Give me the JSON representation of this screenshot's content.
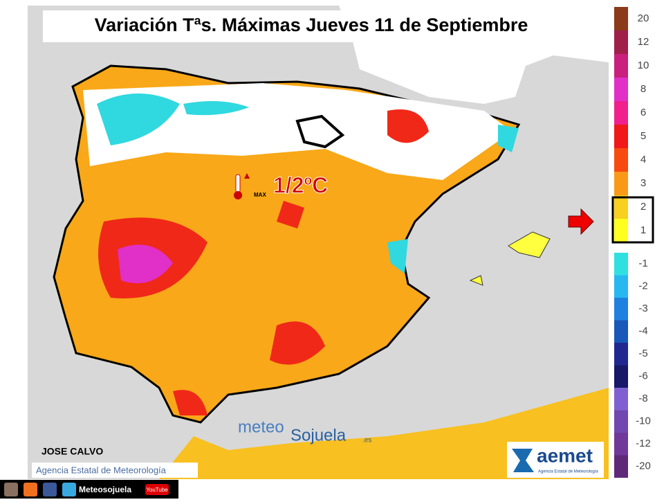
{
  "header": {
    "title": "Variación Tªs. Máximas Jueves 11 de Septiembre"
  },
  "annotation": {
    "icon_label": "MAX",
    "value": "1/2ºC"
  },
  "legend": [
    {
      "label": "20",
      "color": "#8b3a1a"
    },
    {
      "label": "12",
      "color": "#a0204a"
    },
    {
      "label": "10",
      "color": "#c8207c"
    },
    {
      "label": "8",
      "color": "#e030c8"
    },
    {
      "label": "6",
      "color": "#f0208c"
    },
    {
      "label": "5",
      "color": "#f01818"
    },
    {
      "label": "4",
      "color": "#f84a10"
    },
    {
      "label": "3",
      "color": "#f89a18"
    },
    {
      "label": "2",
      "color": "#f8d020"
    },
    {
      "label": "1",
      "color": "#ffff20"
    },
    {
      "label": "-1",
      "color": "#30e0e0"
    },
    {
      "label": "-2",
      "color": "#28b8f0"
    },
    {
      "label": "-3",
      "color": "#2080e0"
    },
    {
      "label": "-4",
      "color": "#1858b8"
    },
    {
      "label": "-5",
      "color": "#202890"
    },
    {
      "label": "-6",
      "color": "#181868"
    },
    {
      "label": "-8",
      "color": "#8060d0"
    },
    {
      "label": "-10",
      "color": "#7048b0"
    },
    {
      "label": "-12",
      "color": "#703898"
    },
    {
      "label": "-20",
      "color": "#602878"
    }
  ],
  "credits": {
    "author": "JOSE CALVO",
    "source": "Agencia Estatal de Meteorología",
    "brand_1": "meteo",
    "brand_2": "Sojuela",
    "brand_3": ".es",
    "logo": "aemet",
    "logo_sub": "Agencia Estatal de Meteorología",
    "social": "Meteosojuela",
    "youtube": "YouTube"
  }
}
